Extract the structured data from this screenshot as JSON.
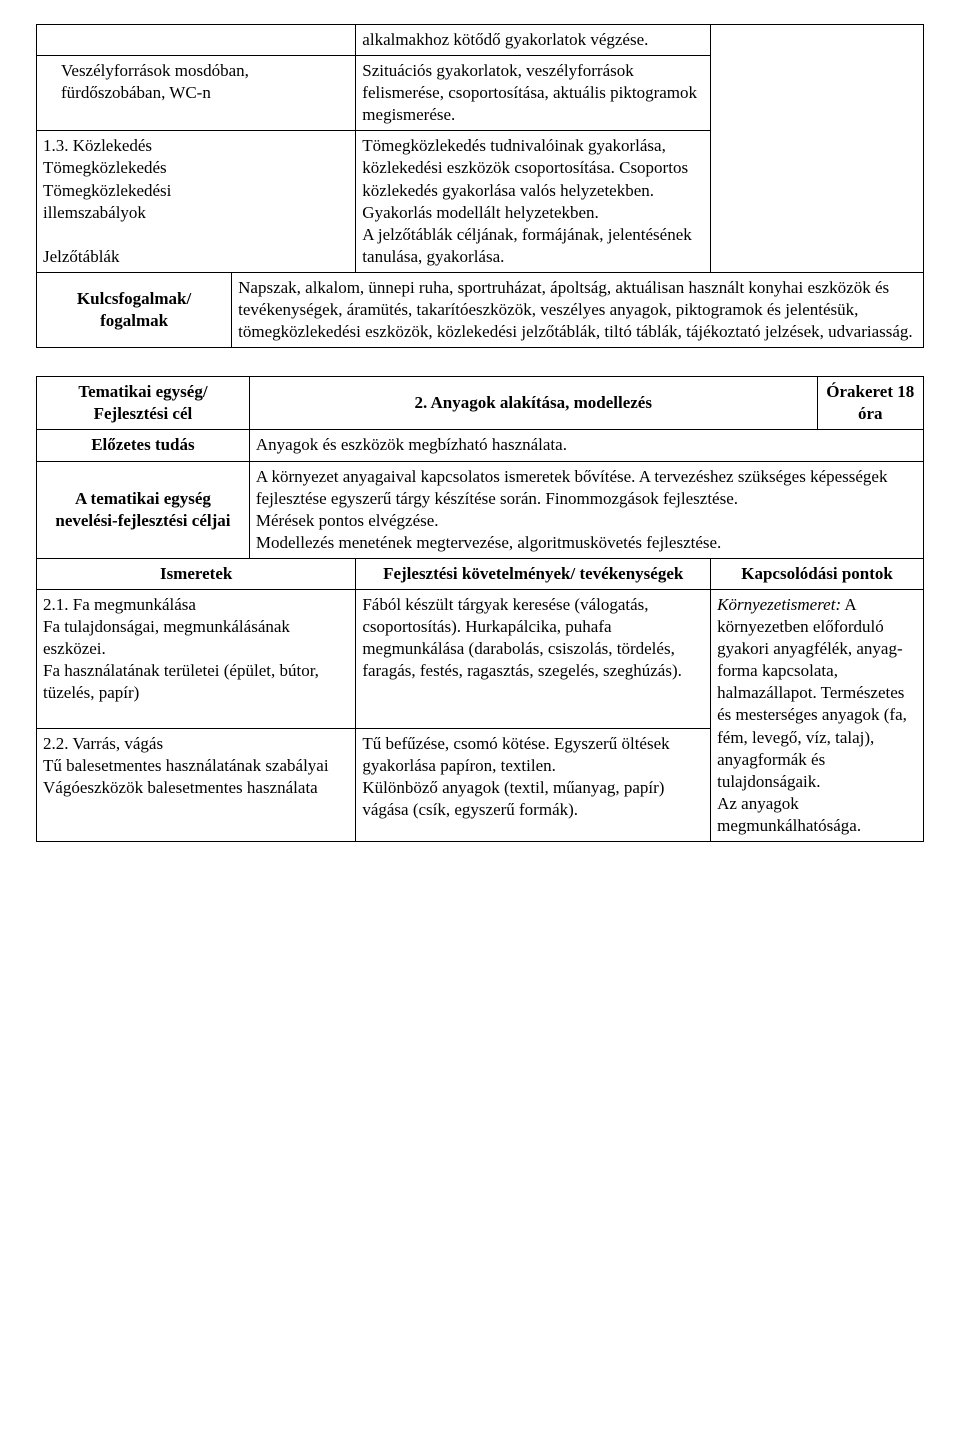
{
  "table1": {
    "col_widths": [
      "22%",
      "14%",
      "40%",
      "24%"
    ],
    "rows": [
      {
        "cells": [
          {
            "colspan": 2,
            "text": ""
          },
          {
            "text": "alkalmakhoz kötődő gyakorlatok végzése."
          },
          {
            "text": "",
            "rowspan": 3
          }
        ]
      },
      {
        "cells": [
          {
            "colspan": 2,
            "indent": true,
            "text": "Veszélyforrások mosdóban, fürdőszobában, WC-n"
          },
          {
            "text": "Szituációs gyakorlatok, veszélyforrások felismerése, csoportosítása, aktuális piktogramok megismerése."
          }
        ]
      },
      {
        "cells": [
          {
            "colspan": 2,
            "text": "1.3. Közlekedés\n    Tömegközlekedés\n    Tömegközlekedési\n    illemszabályok\n\n    Jelzőtáblák",
            "preserve": true
          },
          {
            "text": "Tömegközlekedés tudnivalóinak gyakorlása, közlekedési eszközök csoportosítása. Csoportos közlekedés gyakorlása valós helyzetekben.\nGyakorlás modellált helyzetekben.\nA jelzőtáblák céljának, formájának, jelentésének tanulása, gyakorlása.",
            "preserve": true
          }
        ]
      },
      {
        "cells": [
          {
            "bold": true,
            "center": true,
            "vmiddle": true,
            "text": "Kulcsfogalmak/ fogalmak"
          },
          {
            "colspan": 3,
            "text": "Napszak, alkalom, ünnepi ruha, sportruházat, ápoltság, aktuálisan használt konyhai eszközök és tevékenységek, áramütés, takarítóeszközök, veszélyes anyagok, piktogramok és jelentésük, tömegközlekedési eszközök, közlekedési jelzőtáblák, tiltó táblák, tájékoztató jelzések, udvariasság."
          }
        ]
      }
    ]
  },
  "table2": {
    "col_widths": [
      "24%",
      "12%",
      "40%",
      "12%",
      "12%"
    ],
    "rows": [
      {
        "cells": [
          {
            "bold": true,
            "center": true,
            "text": "Tematikai egység/ Fejlesztési cél"
          },
          {
            "colspan": 3,
            "bold": true,
            "center": true,
            "vmiddle": true,
            "text": "2. Anyagok alakítása, modellezés"
          },
          {
            "bold": true,
            "center": true,
            "text": "Órakeret 18 óra"
          }
        ]
      },
      {
        "cells": [
          {
            "bold": true,
            "center": true,
            "text": "Előzetes tudás"
          },
          {
            "colspan": 4,
            "text": "Anyagok és eszközök megbízható használata."
          }
        ]
      },
      {
        "cells": [
          {
            "bold": true,
            "center": true,
            "vmiddle": true,
            "text": "A tematikai egység nevelési-fejlesztési céljai"
          },
          {
            "colspan": 4,
            "text": "A környezet anyagaival kapcsolatos ismeretek bővítése. A tervezéshez szükséges képességek fejlesztése egyszerű tárgy készítése során. Finommozgások fejlesztése.\nMérések pontos elvégzése.\nModellezés menetének megtervezése, algoritmuskövetés fejlesztése.",
            "preserve": true
          }
        ]
      },
      {
        "cells": [
          {
            "colspan": 2,
            "bold": true,
            "center": true,
            "vmiddle": true,
            "text": "Ismeretek"
          },
          {
            "bold": true,
            "center": true,
            "text": "Fejlesztési követelmények/ tevékenységek"
          },
          {
            "colspan": 2,
            "bold": true,
            "center": true,
            "vmiddle": true,
            "text": "Kapcsolódási pontok"
          }
        ]
      },
      {
        "cells": [
          {
            "colspan": 2,
            "text": "2.1. Fa megmunkálása\nFa tulajdonságai, megmunkálásának eszközei.\nFa használatának területei (épület, bútor, tüzelés, papír)",
            "preserve": true
          },
          {
            "text": "Fából készült tárgyak keresése (válogatás, csoportosítás). Hurkapálcika, puhafa megmunkálása (darabolás, csiszolás, tördelés, faragás, festés, ragasztás, szegelés, szeghúzás)."
          },
          {
            "colspan": 2,
            "rowspan": 2,
            "html": "<span class=\"italic\">Környezetismeret:</span> A környezetben előforduló gyakori anyagfélék, anyag-forma kapcsolata, halmazállapot. Természetes és mesterséges anyagok (fa, fém, levegő, víz, talaj), anyagformák és tulajdonságaik.<br>Az anyagok megmunkálhatósága."
          }
        ]
      },
      {
        "cells": [
          {
            "colspan": 2,
            "text": "2.2. Varrás, vágás\nTű balesetmentes használatának szabályai\nVágóeszközök balesetmentes használata",
            "preserve": true
          },
          {
            "text": "Tű befűzése, csomó kötése. Egyszerű öltések gyakorlása papíron, textilen.\nKülönböző anyagok (textil, műanyag, papír) vágása (csík, egyszerű formák).",
            "preserve": true
          }
        ]
      }
    ]
  }
}
